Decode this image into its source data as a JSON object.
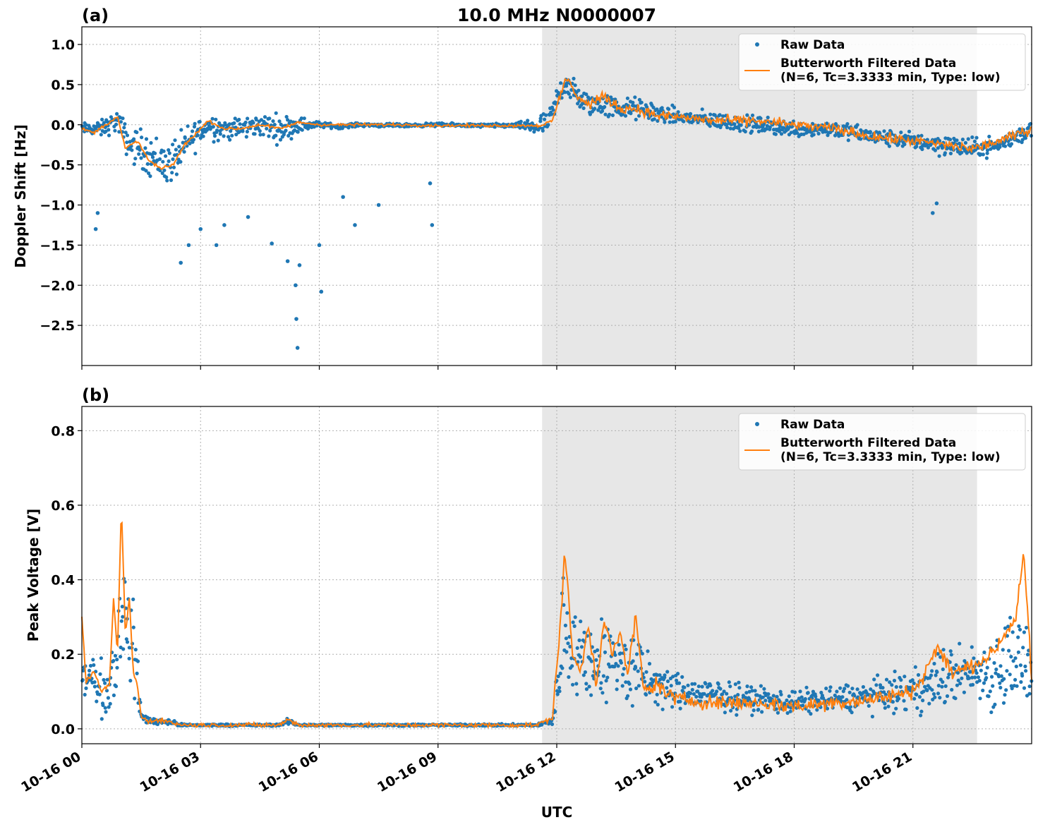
{
  "chart_data": [
    {
      "type": "scatter",
      "panel": "(a)",
      "title": "10.0 MHz N0000007",
      "xlabel": "",
      "ylabel": "Doppler Shift [Hz]",
      "xlim_hours": [
        0,
        24
      ],
      "ylim": [
        -3.0,
        1.22
      ],
      "yticks": [
        1.0,
        0.5,
        0.0,
        -0.5,
        -1.0,
        -1.5,
        -2.0,
        -2.5
      ],
      "ytick_labels": [
        "1.0",
        "0.5",
        "0.0",
        "−0.5",
        "−1.0",
        "−1.5",
        "−2.0",
        "−2.5"
      ],
      "grid": true,
      "legend_position": "top-right",
      "shaded_interval_hours": [
        11.63,
        22.62
      ],
      "series": [
        {
          "name": "Raw Data",
          "kind": "scatter",
          "color": "#1f77b4",
          "x": [
            0,
            0.5,
            0.9,
            1.2,
            1.5,
            1.8,
            2.2,
            2.5,
            2.8,
            3.2,
            3.6,
            4.0,
            4.5,
            5.0,
            5.5,
            6.0,
            6.5,
            7.0,
            8.0,
            9.0,
            10.0,
            11.0,
            11.5,
            11.8,
            12.0,
            12.2,
            12.5,
            12.8,
            13.2,
            13.6,
            14.0,
            14.5,
            15.0,
            16.0,
            17.0,
            18.0,
            19.0,
            20.0,
            21.0,
            21.8,
            22.5,
            23.2,
            24.0
          ],
          "y": [
            -0.05,
            -0.05,
            0.05,
            -0.25,
            -0.3,
            -0.4,
            -0.5,
            -0.35,
            -0.15,
            0.0,
            -0.05,
            -0.05,
            0.0,
            -0.05,
            0.0,
            0.0,
            -0.02,
            0.0,
            -0.01,
            0.0,
            -0.01,
            -0.01,
            -0.02,
            0.02,
            0.3,
            0.55,
            0.35,
            0.25,
            0.25,
            0.2,
            0.2,
            0.15,
            0.1,
            0.05,
            0.0,
            -0.05,
            -0.05,
            -0.15,
            -0.2,
            -0.25,
            -0.3,
            -0.25,
            -0.05
          ],
          "spread": [
            0.1,
            0.15,
            0.2,
            0.3,
            0.35,
            0.4,
            0.4,
            0.35,
            0.3,
            0.25,
            0.2,
            0.2,
            0.2,
            0.25,
            0.15,
            0.05,
            0.04,
            0.03,
            0.03,
            0.03,
            0.03,
            0.04,
            0.2,
            0.2,
            0.25,
            0.3,
            0.25,
            0.2,
            0.22,
            0.2,
            0.2,
            0.18,
            0.15,
            0.15,
            0.15,
            0.15,
            0.15,
            0.15,
            0.15,
            0.2,
            0.18,
            0.15,
            0.18
          ]
        },
        {
          "name": "Butterworth Filtered Data\n(N=6, Tc=3.3333 min, Type: low)",
          "kind": "line",
          "color": "#ff7f0e",
          "x": [
            0,
            0.3,
            0.6,
            0.9,
            1.1,
            1.4,
            1.7,
            2.0,
            2.3,
            2.6,
            2.9,
            3.2,
            3.6,
            4.0,
            4.5,
            5.0,
            5.5,
            6.0,
            7.0,
            8.0,
            9.0,
            10.0,
            11.0,
            11.6,
            11.9,
            12.1,
            12.3,
            12.5,
            12.8,
            13.2,
            13.6,
            14.0,
            14.5,
            15.0,
            16.0,
            17.0,
            18.0,
            19.0,
            20.0,
            21.0,
            21.8,
            22.5,
            23.2,
            24.0
          ],
          "y": [
            -0.05,
            -0.1,
            0.0,
            0.1,
            -0.3,
            -0.2,
            -0.45,
            -0.55,
            -0.5,
            -0.25,
            -0.1,
            0.05,
            -0.05,
            -0.05,
            0.0,
            -0.05,
            0.03,
            0.0,
            0.0,
            0.0,
            -0.01,
            -0.01,
            -0.01,
            -0.01,
            0.05,
            0.4,
            0.6,
            0.35,
            0.25,
            0.35,
            0.2,
            0.2,
            0.12,
            0.1,
            0.05,
            0.05,
            0.0,
            -0.05,
            -0.15,
            -0.2,
            -0.25,
            -0.3,
            -0.2,
            -0.05
          ]
        }
      ],
      "outliers": [
        [
          0.35,
          -1.3
        ],
        [
          0.4,
          -1.1
        ],
        [
          2.5,
          -1.72
        ],
        [
          2.7,
          -1.5
        ],
        [
          3.0,
          -1.3
        ],
        [
          3.4,
          -1.5
        ],
        [
          3.6,
          -1.25
        ],
        [
          4.8,
          -1.48
        ],
        [
          5.2,
          -1.7
        ],
        [
          5.4,
          -2.0
        ],
        [
          5.42,
          -2.42
        ],
        [
          5.45,
          -2.78
        ],
        [
          5.5,
          -1.75
        ],
        [
          6.0,
          -1.5
        ],
        [
          6.05,
          -2.08
        ],
        [
          6.9,
          -1.25
        ],
        [
          7.5,
          -1.0
        ],
        [
          8.8,
          -0.73
        ],
        [
          8.85,
          -1.25
        ],
        [
          4.2,
          -1.15
        ],
        [
          6.6,
          -0.9
        ],
        [
          21.5,
          -1.1
        ],
        [
          21.6,
          -0.98
        ]
      ]
    },
    {
      "type": "scatter",
      "panel": "(b)",
      "title": "",
      "xlabel": "UTC",
      "ylabel": "Peak Voltage [V]",
      "xlim_hours": [
        0,
        24
      ],
      "ylim": [
        -0.04,
        0.865
      ],
      "yticks": [
        0.0,
        0.2,
        0.4,
        0.6,
        0.8
      ],
      "ytick_labels": [
        "0.0",
        "0.2",
        "0.4",
        "0.6",
        "0.8"
      ],
      "xtick_hours": [
        0,
        3,
        6,
        9,
        12,
        15,
        18,
        21
      ],
      "xtick_labels": [
        "10-16 00",
        "10-16 03",
        "10-16 06",
        "10-16 09",
        "10-16 12",
        "10-16 15",
        "10-16 18",
        "10-16 21"
      ],
      "grid": true,
      "legend_position": "top-right",
      "shaded_interval_hours": [
        11.63,
        22.62
      ],
      "series": [
        {
          "name": "Raw Data",
          "kind": "scatter",
          "color": "#1f77b4",
          "x": [
            0,
            0.3,
            0.6,
            0.9,
            1.0,
            1.2,
            1.4,
            1.5,
            1.8,
            2.2,
            2.5,
            3.0,
            4.0,
            5.0,
            5.2,
            5.5,
            6.0,
            8.0,
            10.0,
            11.5,
            11.9,
            12.0,
            12.2,
            12.5,
            13.0,
            13.5,
            14.0,
            14.5,
            15.0,
            16.0,
            17.0,
            18.0,
            19.0,
            20.0,
            21.0,
            21.5,
            22.0,
            22.5,
            23.0,
            23.5,
            24.0
          ],
          "y": [
            0.15,
            0.13,
            0.1,
            0.2,
            0.35,
            0.25,
            0.15,
            0.03,
            0.02,
            0.02,
            0.01,
            0.01,
            0.01,
            0.01,
            0.02,
            0.01,
            0.01,
            0.01,
            0.01,
            0.01,
            0.02,
            0.1,
            0.3,
            0.2,
            0.18,
            0.18,
            0.15,
            0.12,
            0.1,
            0.09,
            0.08,
            0.07,
            0.08,
            0.09,
            0.1,
            0.12,
            0.15,
            0.15,
            0.15,
            0.2,
            0.15
          ],
          "spread": [
            0.12,
            0.1,
            0.1,
            0.15,
            0.25,
            0.2,
            0.15,
            0.02,
            0.015,
            0.01,
            0.005,
            0.004,
            0.004,
            0.004,
            0.01,
            0.004,
            0.004,
            0.004,
            0.004,
            0.004,
            0.02,
            0.1,
            0.25,
            0.18,
            0.16,
            0.16,
            0.15,
            0.1,
            0.07,
            0.06,
            0.05,
            0.05,
            0.05,
            0.06,
            0.08,
            0.1,
            0.12,
            0.1,
            0.15,
            0.2,
            0.15
          ]
        },
        {
          "name": "Butterworth Filtered Data\n(N=6, Tc=3.3333 min, Type: low)",
          "kind": "line",
          "color": "#ff7f0e",
          "x": [
            0,
            0.1,
            0.3,
            0.5,
            0.7,
            0.8,
            0.9,
            1.0,
            1.1,
            1.2,
            1.3,
            1.4,
            1.5,
            1.7,
            2.0,
            2.3,
            2.6,
            3.0,
            4.0,
            5.0,
            5.2,
            5.5,
            6.0,
            8.0,
            10.0,
            11.5,
            11.9,
            12.1,
            12.2,
            12.4,
            12.6,
            12.8,
            13.0,
            13.2,
            13.4,
            13.6,
            13.8,
            14.0,
            14.2,
            14.5,
            15.0,
            16.0,
            17.0,
            18.0,
            19.0,
            20.0,
            21.0,
            21.3,
            21.6,
            22.0,
            22.5,
            23.0,
            23.3,
            23.6,
            23.8,
            24.0
          ],
          "y": [
            0.3,
            0.13,
            0.15,
            0.1,
            0.12,
            0.35,
            0.2,
            0.6,
            0.25,
            0.35,
            0.15,
            0.12,
            0.03,
            0.02,
            0.025,
            0.015,
            0.01,
            0.01,
            0.01,
            0.01,
            0.025,
            0.01,
            0.01,
            0.01,
            0.01,
            0.01,
            0.03,
            0.3,
            0.48,
            0.2,
            0.15,
            0.28,
            0.12,
            0.3,
            0.2,
            0.25,
            0.15,
            0.3,
            0.1,
            0.12,
            0.08,
            0.07,
            0.07,
            0.06,
            0.07,
            0.08,
            0.1,
            0.15,
            0.22,
            0.15,
            0.17,
            0.2,
            0.25,
            0.3,
            0.48,
            0.13
          ]
        }
      ]
    }
  ]
}
